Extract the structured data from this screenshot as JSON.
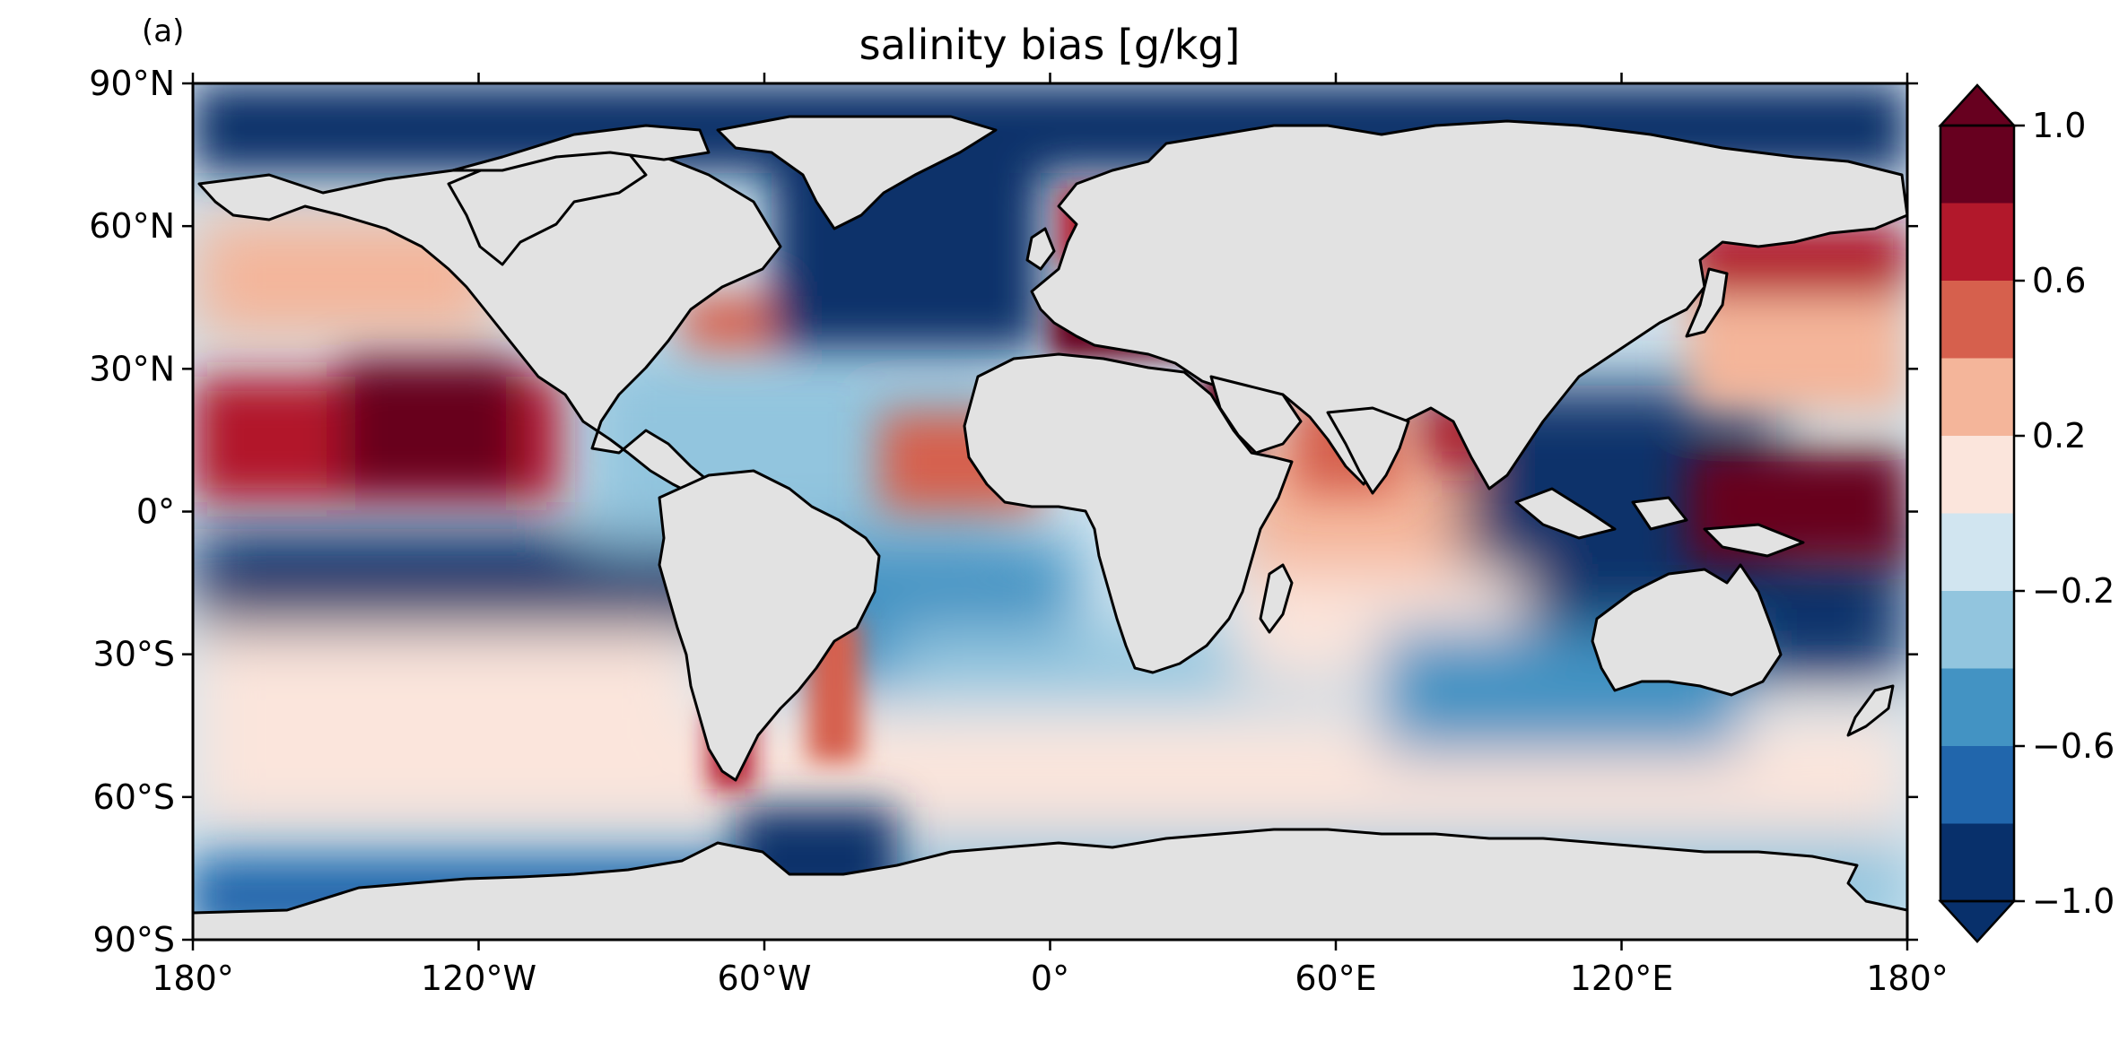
{
  "panel_label": "(a)",
  "title": "salinity bias [g/kg]",
  "y_ticks": [
    "90°N",
    "60°N",
    "30°N",
    "0°",
    "30°S",
    "60°S",
    "90°S"
  ],
  "x_ticks": [
    "180°",
    "120°W",
    "60°W",
    "0°",
    "60°E",
    "120°E",
    "180°"
  ],
  "colorbar": {
    "tick_labels": [
      "1.0",
      "0.6",
      "0.2",
      "−0.2",
      "−0.6",
      "−1.0"
    ],
    "levels": [
      -1.0,
      -0.8,
      -0.6,
      -0.4,
      -0.2,
      0.0,
      0.2,
      0.4,
      0.6,
      0.8,
      1.0
    ],
    "colors": [
      "#08306b",
      "#2166ac",
      "#4393c3",
      "#92c5de",
      "#d1e5f0",
      "#fbe5dc",
      "#f4b59a",
      "#d6604d",
      "#b2182b",
      "#67001f"
    ],
    "extend": "both"
  },
  "colors": {
    "land": "#e2e2e2",
    "coast": "#000000",
    "no_data": "#ffffff"
  },
  "chart_data": {
    "type": "heatmap",
    "projection": "PlateCarree",
    "variable": "salinity bias",
    "units": "g/kg",
    "lon_range": [
      -180,
      180
    ],
    "lat_range": [
      -90,
      90
    ],
    "vmin": -1.0,
    "vmax": 1.0
  }
}
